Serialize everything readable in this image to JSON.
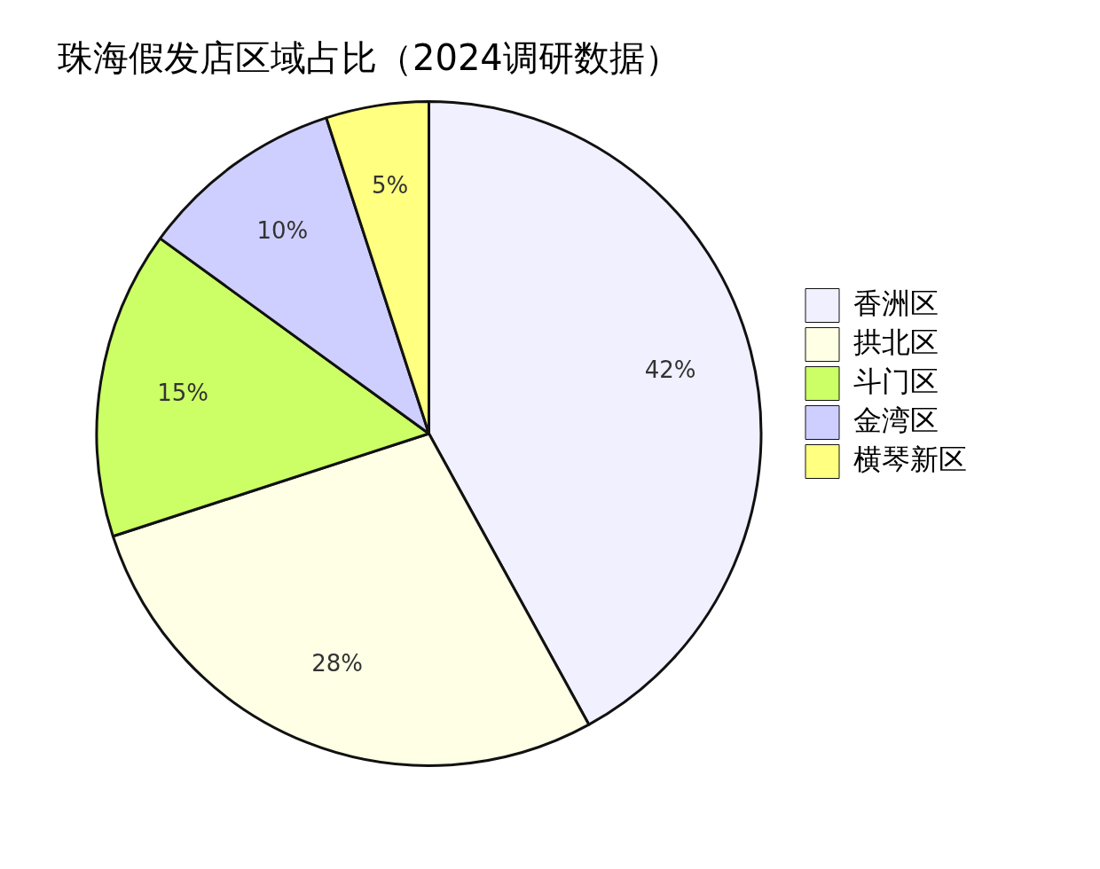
{
  "chart_data": {
    "type": "pie",
    "title": "珠海假发店区域占比（2024调研数据）",
    "categories": [
      "香洲区",
      "拱北区",
      "斗门区",
      "金湾区",
      "横琴新区"
    ],
    "values": [
      42,
      28,
      15,
      10,
      5
    ],
    "colors": [
      "#f0f0ff",
      "#ffffe6",
      "#ccff66",
      "#cfcfff",
      "#ffff80"
    ],
    "value_labels": [
      "42%",
      "28%",
      "15%",
      "10%",
      "5%"
    ],
    "legend": "right"
  }
}
